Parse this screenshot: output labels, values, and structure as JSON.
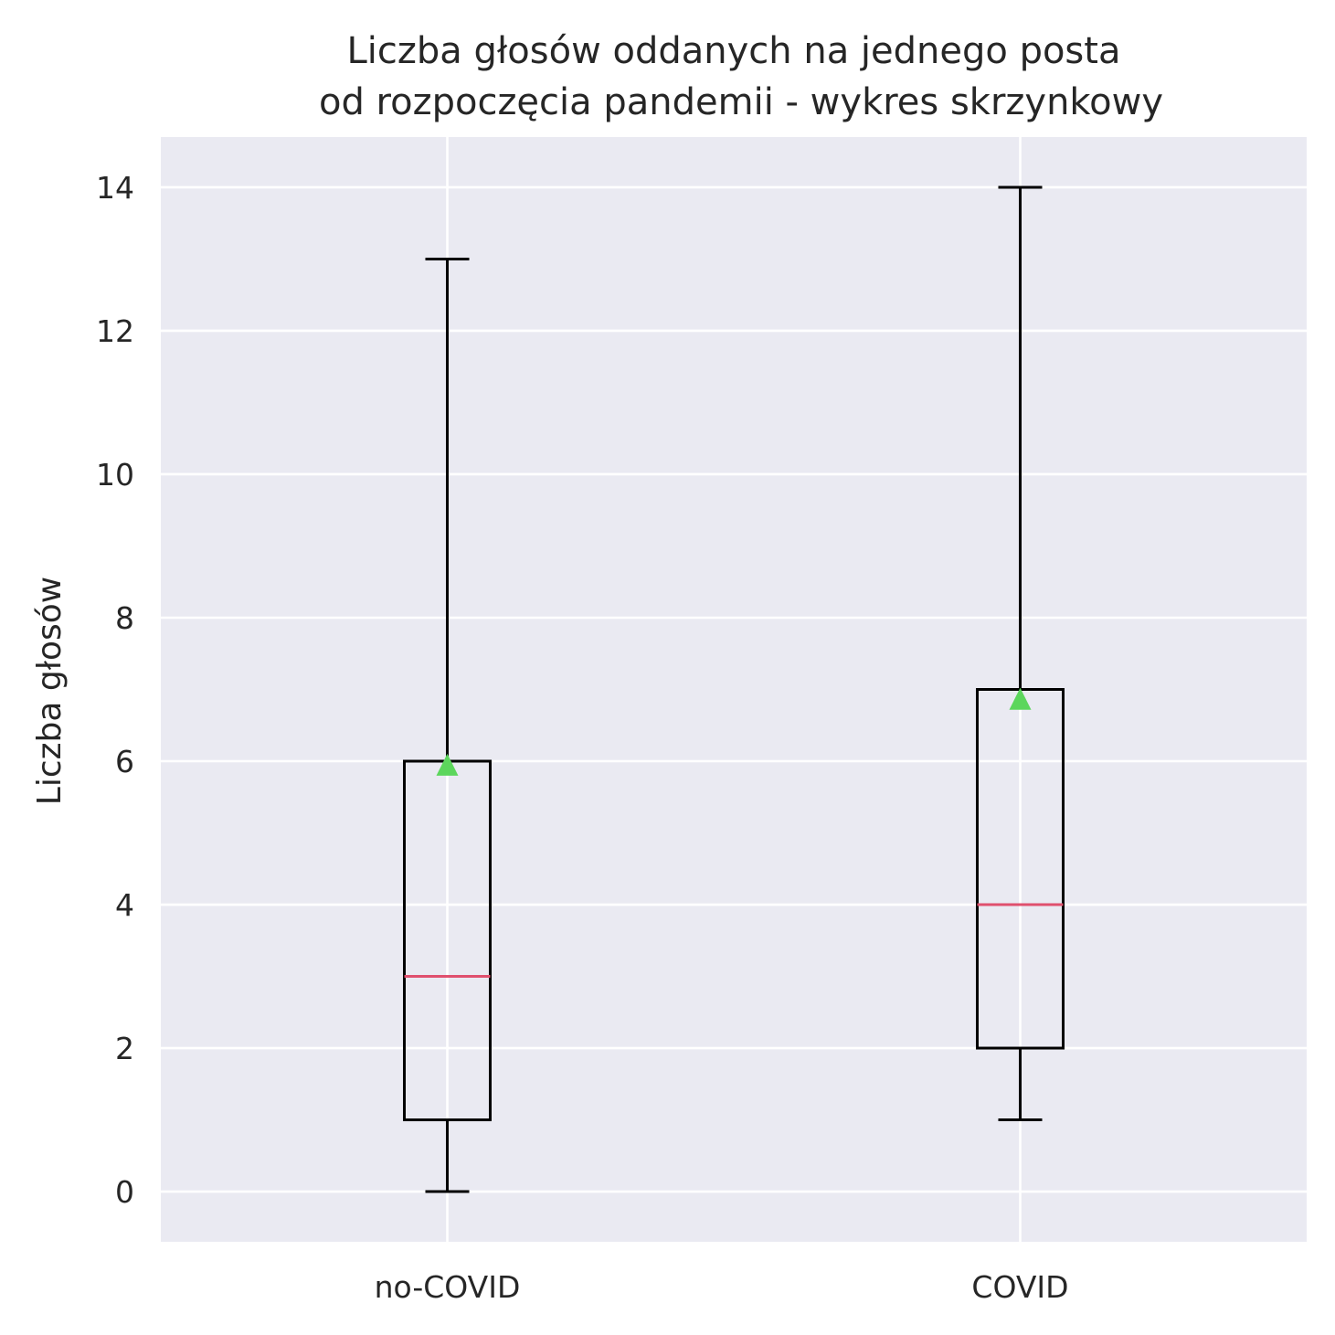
{
  "chart_data": {
    "type": "box",
    "title": "Liczba głosów oddanych na jednego posta",
    "subtitle": "od rozpoczęcia pandemii - wykres skrzynkowy",
    "xlabel": "",
    "ylabel": "Liczba głosów",
    "ylim": [
      -0.7,
      14.7
    ],
    "yticks": [
      0,
      2,
      4,
      6,
      8,
      10,
      12,
      14
    ],
    "grid": true,
    "categories": [
      "no-COVID",
      "COVID"
    ],
    "boxes": [
      {
        "category": "no-COVID",
        "whisker_low": 0,
        "q1": 1,
        "median": 3,
        "q3": 6,
        "whisker_high": 13,
        "mean": 5.95
      },
      {
        "category": "COVID",
        "whisker_low": 1,
        "q1": 2,
        "median": 4,
        "q3": 7,
        "whisker_high": 14,
        "mean": 6.87
      }
    ],
    "colors": {
      "background": "#eaeaf2",
      "grid": "#ffffff",
      "box": "#000000",
      "median": "#e0506e",
      "mean_marker": "#5cd65c"
    }
  }
}
